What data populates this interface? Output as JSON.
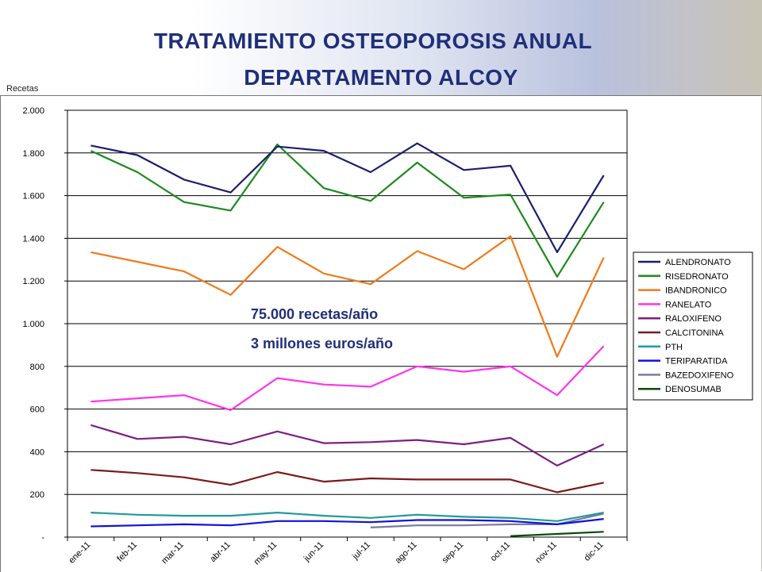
{
  "header": {
    "title_line1": "TRATAMIENTO OSTEOPOROSIS ANUAL",
    "title_line2": "DEPARTAMENTO ALCOY"
  },
  "chart_data": {
    "type": "line",
    "ylabel": "Recetas",
    "ylim": [
      0,
      2000
    ],
    "yticks": [
      0,
      200,
      400,
      600,
      800,
      1000,
      1200,
      1400,
      1600,
      1800,
      2000
    ],
    "ytick_labels": [
      "-",
      "200",
      "400",
      "600",
      "800",
      "1.000",
      "1.200",
      "1.400",
      "1.600",
      "1.800",
      "2.000"
    ],
    "grid": true,
    "legend_position": "right",
    "categories": [
      "ene-11",
      "feb-11",
      "mar-11",
      "abr-11",
      "may-11",
      "jun-11",
      "jul-11",
      "ago-11",
      "sep-11",
      "oct-11",
      "nov-11",
      "dic-11"
    ],
    "series": [
      {
        "name": "ALENDRONATO",
        "color": "#1a1f6e",
        "values": [
          1835,
          1790,
          1675,
          1615,
          1830,
          1810,
          1710,
          1845,
          1720,
          1740,
          1335,
          1695
        ]
      },
      {
        "name": "RISEDRONATO",
        "color": "#1e8a1e",
        "values": [
          1810,
          1710,
          1570,
          1530,
          1840,
          1635,
          1575,
          1755,
          1590,
          1605,
          1220,
          1570
        ]
      },
      {
        "name": "IBANDRONICO",
        "color": "#f07a1a",
        "values": [
          1335,
          1290,
          1245,
          1135,
          1360,
          1235,
          1185,
          1340,
          1255,
          1410,
          845,
          1310
        ]
      },
      {
        "name": "RANELATO",
        "color": "#ff33ee",
        "values": [
          635,
          650,
          665,
          595,
          745,
          715,
          705,
          800,
          775,
          800,
          665,
          895
        ]
      },
      {
        "name": "RALOXIFENO",
        "color": "#7d1f7d",
        "values": [
          525,
          460,
          470,
          435,
          495,
          440,
          445,
          455,
          435,
          465,
          335,
          435
        ]
      },
      {
        "name": "CALCITONINA",
        "color": "#7a1a1a",
        "values": [
          315,
          300,
          280,
          245,
          305,
          260,
          275,
          270,
          270,
          270,
          210,
          255
        ]
      },
      {
        "name": "PTH",
        "color": "#1f9a9a",
        "values": [
          115,
          105,
          100,
          100,
          115,
          100,
          90,
          105,
          95,
          90,
          75,
          115
        ]
      },
      {
        "name": "TERIPARATIDA",
        "color": "#1010dd",
        "values": [
          50,
          55,
          60,
          55,
          75,
          75,
          70,
          80,
          80,
          75,
          60,
          85
        ]
      },
      {
        "name": "BAZEDOXIFENO",
        "color": "#7a7aa0",
        "values": [
          null,
          null,
          null,
          null,
          null,
          null,
          45,
          55,
          55,
          60,
          60,
          110
        ]
      },
      {
        "name": "DENOSUMAB",
        "color": "#0a4a0a",
        "values": [
          null,
          null,
          null,
          null,
          null,
          null,
          null,
          null,
          null,
          5,
          15,
          25
        ]
      }
    ],
    "annotations": [
      "75.000 recetas/año",
      "3 millones euros/año"
    ]
  }
}
